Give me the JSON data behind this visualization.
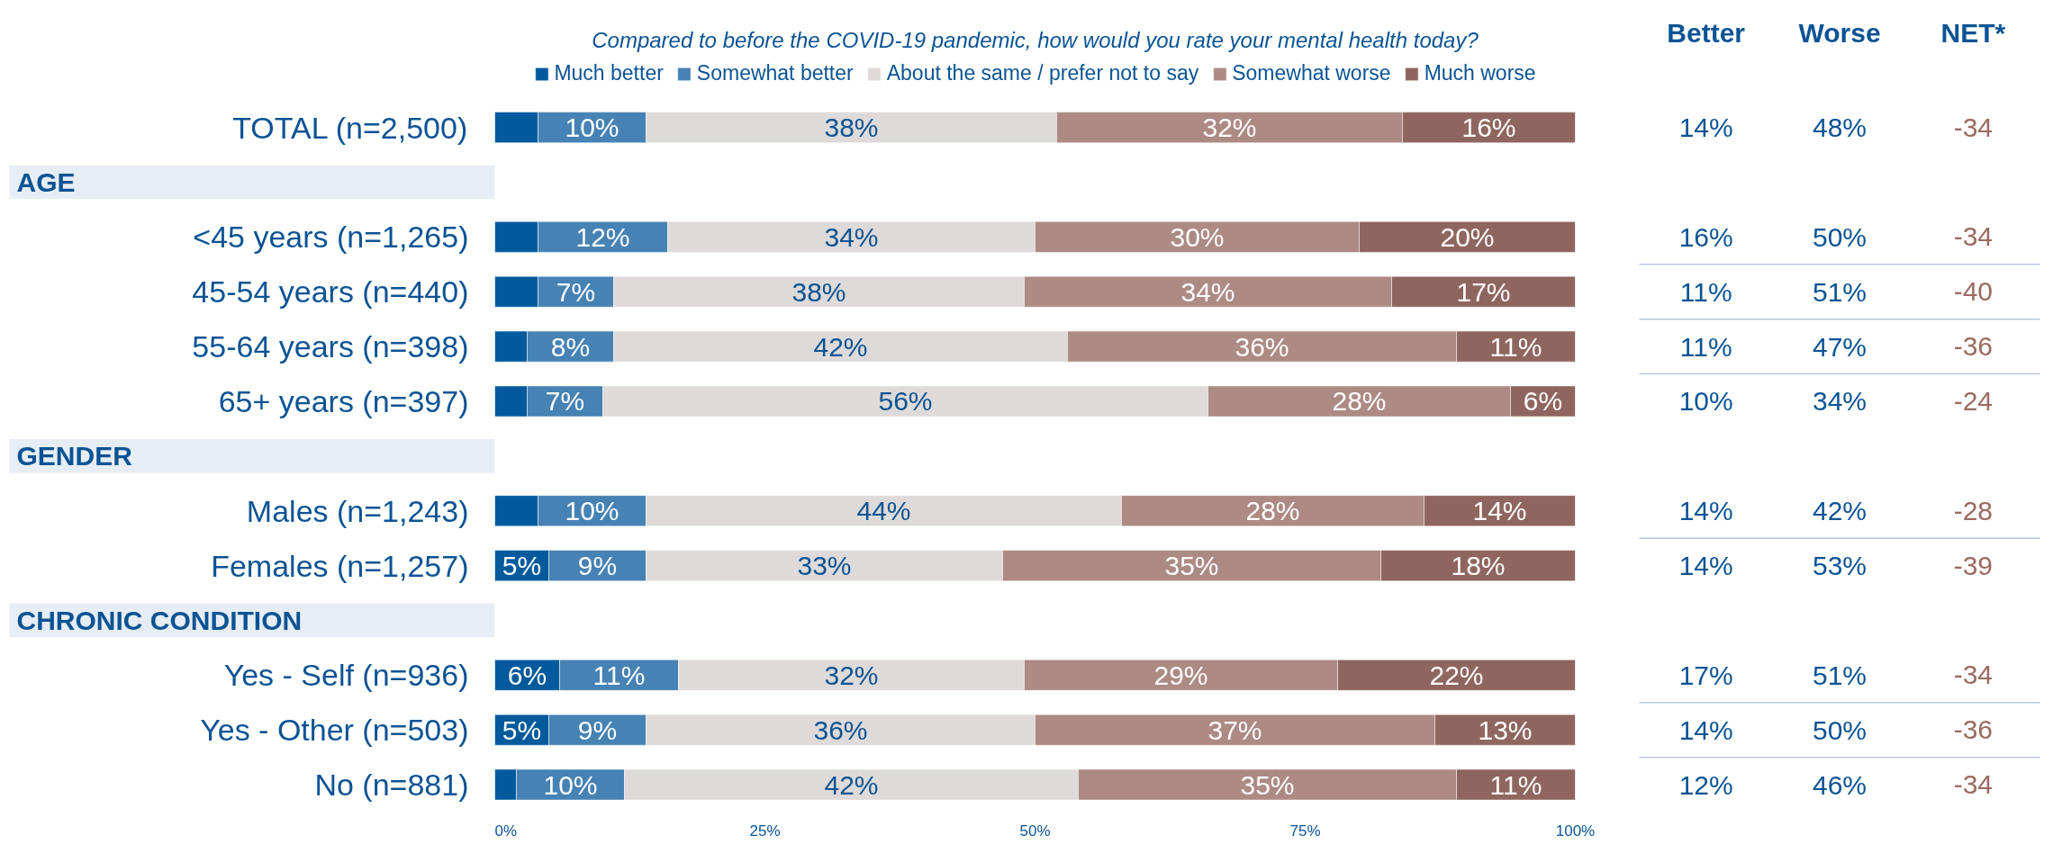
{
  "chart_data": [
    {
      "type": "bar",
      "orientation": "horizontal",
      "stacked": true,
      "title": "Compared to before the COVID-19 pandemic, how would you rate your mental health today?",
      "categories": [
        "TOTAL (n=2,500)",
        null,
        "<45 years (n=1,265)",
        "45-54 years (n=440)",
        "55-64 years (n=398)",
        "65+ years (n=397)",
        null,
        "Males (n=1,243)",
        "Females (n=1,257)",
        null,
        "Yes - Self (n=936)",
        "Yes - Other (n=503)",
        "No (n=881)"
      ],
      "annotations": [
        "AGE",
        "GENDER",
        "CHRONIC CONDITION"
      ],
      "series": [
        {
          "name": "Much better",
          "color": "#005a9c",
          "values": [
            4,
            null,
            4,
            4,
            3,
            3,
            null,
            4,
            5,
            null,
            6,
            5,
            2
          ],
          "value_labels": [
            null,
            null,
            null,
            null,
            null,
            null,
            null,
            null,
            "5%",
            null,
            "6%",
            "5%",
            null
          ]
        },
        {
          "name": "Somewhat better",
          "color": "#4682b4",
          "values": [
            10,
            null,
            12,
            7,
            8,
            7,
            null,
            10,
            9,
            null,
            11,
            9,
            10
          ],
          "value_labels": [
            "10%",
            null,
            "12%",
            "7%",
            "8%",
            "7%",
            null,
            "10%",
            "9%",
            null,
            "11%",
            "9%",
            "10%"
          ]
        },
        {
          "name": "About the same / prefer not to say",
          "color": "#dedad9",
          "values": [
            38,
            null,
            34,
            38,
            42,
            56,
            null,
            44,
            33,
            null,
            32,
            36,
            42
          ],
          "value_labels": [
            "38%",
            null,
            "34%",
            "38%",
            "42%",
            "56%",
            null,
            "44%",
            "33%",
            null,
            "32%",
            "36%",
            "42%"
          ]
        },
        {
          "name": "Somewhat worse",
          "color": "#ad8a84",
          "values": [
            32,
            null,
            30,
            34,
            36,
            28,
            null,
            28,
            35,
            null,
            29,
            37,
            35
          ],
          "value_labels": [
            "32%",
            null,
            "30%",
            "34%",
            "36%",
            "28%",
            null,
            "28%",
            "35%",
            null,
            "29%",
            "37%",
            "35%"
          ]
        },
        {
          "name": "Much worse",
          "color": "#8f665f",
          "values": [
            16,
            null,
            20,
            17,
            11,
            6,
            null,
            14,
            18,
            null,
            22,
            13,
            11
          ],
          "value_labels": [
            "16%",
            null,
            "20%",
            "17%",
            "11%",
            "6%",
            null,
            "14%",
            "18%",
            null,
            "22%",
            "13%",
            "11%"
          ]
        }
      ],
      "xlim": [
        0,
        100
      ],
      "xticks": [
        {
          "value": 0,
          "label": "0%"
        },
        {
          "value": 25,
          "label": "25%"
        },
        {
          "value": 50,
          "label": "50%"
        },
        {
          "value": 75,
          "label": "75%"
        },
        {
          "value": 100,
          "label": "100%"
        }
      ],
      "legend": "top",
      "grid": false
    },
    {
      "type": "heatmap",
      "tick_labels": "x",
      "categories": [
        "Better",
        "Worse",
        "NET*"
      ],
      "y_categories": [
        null,
        null,
        null,
        null,
        null,
        null,
        null,
        null,
        null,
        null,
        null,
        null,
        null
      ],
      "cells": [
        [
          14,
          48,
          -34
        ],
        null,
        [
          16,
          50,
          -34
        ],
        [
          11,
          51,
          -40
        ],
        [
          11,
          47,
          -36
        ],
        [
          10,
          34,
          -24
        ],
        null,
        [
          14,
          42,
          -28
        ],
        [
          14,
          53,
          -39
        ],
        null,
        [
          17,
          51,
          -34
        ],
        [
          14,
          50,
          -36
        ],
        [
          12,
          46,
          -34
        ]
      ],
      "cell_labels": [
        [
          "14%",
          "48%",
          "-34"
        ],
        null,
        [
          "16%",
          "50%",
          "-34"
        ],
        [
          "11%",
          "51%",
          "-40"
        ],
        [
          "11%",
          "47%",
          "-36"
        ],
        [
          "10%",
          "34%",
          "-24"
        ],
        null,
        [
          "14%",
          "42%",
          "-28"
        ],
        [
          "14%",
          "53%",
          "-39"
        ],
        null,
        [
          "17%",
          "51%",
          "-34"
        ],
        [
          "14%",
          "50%",
          "-36"
        ],
        [
          "12%",
          "46%",
          "-34"
        ]
      ]
    }
  ]
}
